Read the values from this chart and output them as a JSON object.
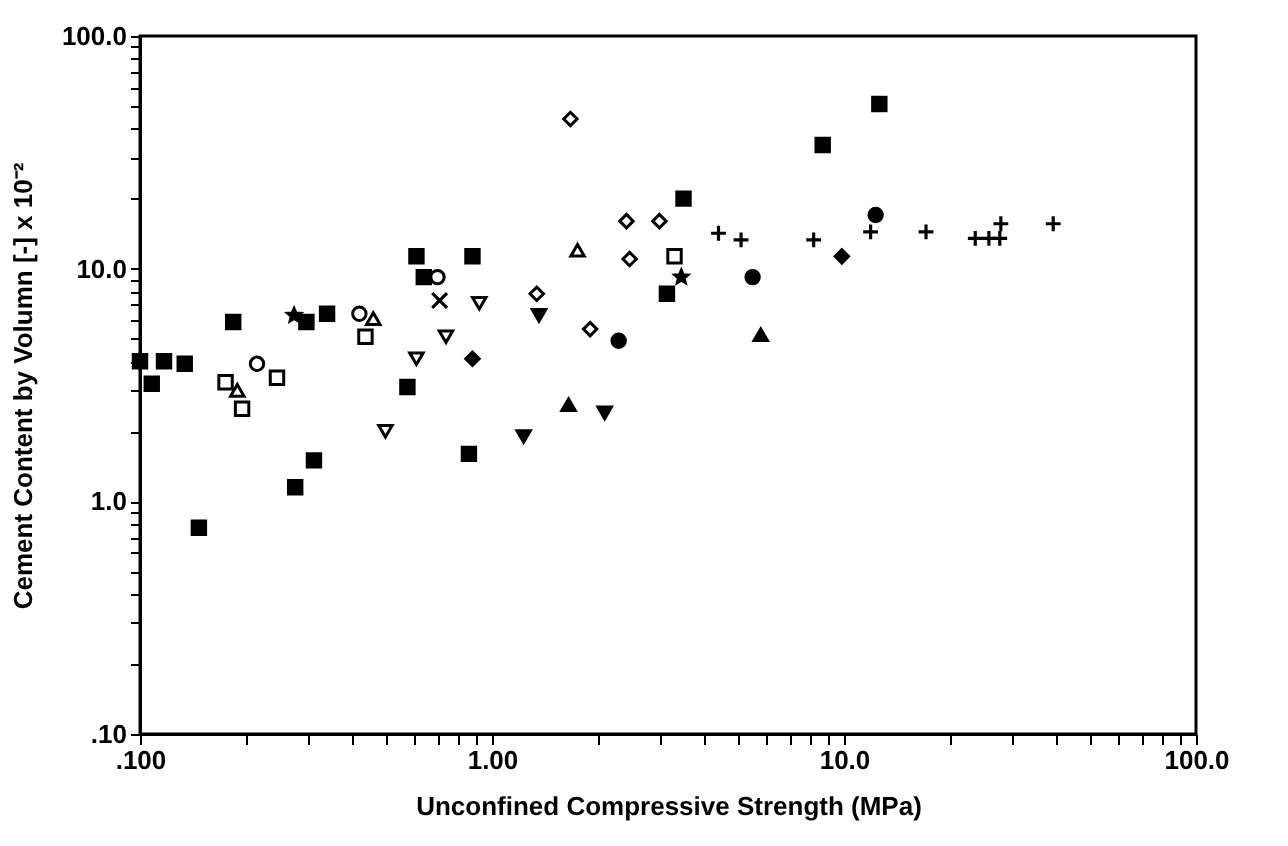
{
  "chart_data": {
    "type": "scatter",
    "xlabel": "Unconfined Compressive Strength (MPa)",
    "ylabel": "Cement Content by Volumn [-] x 10⁻²",
    "log": "xy",
    "grid": false,
    "xlim": [
      0.1,
      100
    ],
    "ylim": [
      0.1,
      100
    ],
    "xticks": [
      {
        "value": 0.1,
        "label": ".100"
      },
      {
        "value": 0.2,
        "label": null
      },
      {
        "value": 0.3,
        "label": null
      },
      {
        "value": 0.4,
        "label": null
      },
      {
        "value": 0.5,
        "label": null
      },
      {
        "value": 0.6,
        "label": null
      },
      {
        "value": 0.7,
        "label": null
      },
      {
        "value": 0.8,
        "label": null
      },
      {
        "value": 0.9,
        "label": null
      },
      {
        "value": 1,
        "label": "1.00"
      },
      {
        "value": 2,
        "label": null
      },
      {
        "value": 3,
        "label": null
      },
      {
        "value": 4,
        "label": null
      },
      {
        "value": 5,
        "label": null
      },
      {
        "value": 6,
        "label": null
      },
      {
        "value": 7,
        "label": null
      },
      {
        "value": 8,
        "label": null
      },
      {
        "value": 9,
        "label": null
      },
      {
        "value": 10,
        "label": "10.0"
      },
      {
        "value": 20,
        "label": null
      },
      {
        "value": 30,
        "label": null
      },
      {
        "value": 40,
        "label": null
      },
      {
        "value": 50,
        "label": null
      },
      {
        "value": 60,
        "label": null
      },
      {
        "value": 70,
        "label": null
      },
      {
        "value": 80,
        "label": null
      },
      {
        "value": 90,
        "label": null
      },
      {
        "value": 100,
        "label": "100.0"
      }
    ],
    "yticks": [
      {
        "value": 0.1,
        "label": ".10"
      },
      {
        "value": 0.2,
        "label": null
      },
      {
        "value": 0.3,
        "label": null
      },
      {
        "value": 0.4,
        "label": null
      },
      {
        "value": 0.5,
        "label": null
      },
      {
        "value": 0.6,
        "label": null
      },
      {
        "value": 0.7,
        "label": null
      },
      {
        "value": 0.8,
        "label": null
      },
      {
        "value": 0.9,
        "label": null
      },
      {
        "value": 1,
        "label": "1.0"
      },
      {
        "value": 2,
        "label": null
      },
      {
        "value": 3,
        "label": null
      },
      {
        "value": 4,
        "label": null
      },
      {
        "value": 5,
        "label": null
      },
      {
        "value": 6,
        "label": null
      },
      {
        "value": 7,
        "label": null
      },
      {
        "value": 8,
        "label": null
      },
      {
        "value": 9,
        "label": null
      },
      {
        "value": 10,
        "label": "10.0"
      },
      {
        "value": 20,
        "label": null
      },
      {
        "value": 30,
        "label": null
      },
      {
        "value": 40,
        "label": null
      },
      {
        "value": 50,
        "label": null
      },
      {
        "value": 60,
        "label": null
      },
      {
        "value": 70,
        "label": null
      },
      {
        "value": 80,
        "label": null
      },
      {
        "value": 90,
        "label": null
      },
      {
        "value": 100,
        "label": "100.0"
      }
    ],
    "series": [
      {
        "color": "#000000",
        "marker": "square",
        "x": [
          0.1,
          0.108,
          0.117,
          0.134,
          0.184,
          0.297,
          0.34,
          0.61,
          0.64,
          0.88,
          3.5,
          8.7,
          12.6
        ],
        "values": [
          4.0,
          3.2,
          4.0,
          3.9,
          5.9,
          5.9,
          6.4,
          11.3,
          9.2,
          11.3,
          20,
          34,
          51
        ]
      },
      {
        "color": "#000000",
        "marker": "square",
        "x": [
          0.147,
          0.276,
          0.312,
          0.575,
          0.86,
          3.14
        ],
        "values": [
          0.77,
          1.15,
          1.5,
          3.1,
          1.6,
          7.8
        ]
      },
      {
        "color": "#ffffff",
        "marker": "square",
        "x": [
          0.175,
          0.195,
          0.245,
          0.437,
          3.3
        ],
        "values": [
          3.25,
          2.5,
          3.4,
          5.1,
          11.3
        ]
      },
      {
        "color": "#ffffff",
        "marker": "circle",
        "x": [
          0.215,
          0.42,
          0.7
        ],
        "values": [
          3.9,
          6.4,
          9.2
        ]
      },
      {
        "color": "#ffffff",
        "marker": "triangle",
        "x": [
          0.189,
          0.46,
          1.75
        ],
        "values": [
          3.0,
          6.1,
          12.0
        ]
      },
      {
        "color": "#ffffff",
        "marker": "triangle-down",
        "x": [
          0.498,
          0.61,
          0.74,
          0.92
        ],
        "values": [
          2.0,
          4.1,
          5.1,
          7.1
        ]
      },
      {
        "color": "#000000",
        "marker": "triangle-down",
        "x": [
          1.23,
          1.36,
          2.09
        ],
        "values": [
          1.9,
          6.3,
          2.4
        ]
      },
      {
        "color": "#000000",
        "marker": "triangle",
        "x": [
          1.65,
          5.8
        ],
        "values": [
          2.6,
          5.2
        ]
      },
      {
        "color": "#ffffff",
        "marker": "diamond",
        "x": [
          1.34,
          1.67,
          1.9,
          2.41,
          2.46,
          2.99
        ],
        "values": [
          7.8,
          44,
          5.5,
          16,
          11,
          16
        ]
      },
      {
        "color": "#000000",
        "marker": "diamond",
        "x": [
          0.88,
          9.86
        ],
        "values": [
          4.1,
          11.3
        ]
      },
      {
        "color": "#000000",
        "marker": "circle",
        "x": [
          2.29,
          5.5,
          12.3
        ],
        "values": [
          4.9,
          9.2,
          17
        ]
      },
      {
        "color": "#000000",
        "marker": "cross",
        "x": [
          4.4,
          5.1,
          8.2,
          11.9,
          17.1,
          23.6,
          25.8,
          27.7,
          27.9,
          39.3
        ],
        "values": [
          14.2,
          13.3,
          13.3,
          14.4,
          14.4,
          13.5,
          13.5,
          13.5,
          15.6,
          15.6
        ]
      },
      {
        "color": "#000000",
        "marker": "x",
        "x": [
          0.71
        ],
        "values": [
          7.3
        ]
      },
      {
        "color": "#000000",
        "marker": "star",
        "x": [
          0.274,
          3.45
        ],
        "values": [
          6.3,
          9.2
        ]
      }
    ]
  }
}
